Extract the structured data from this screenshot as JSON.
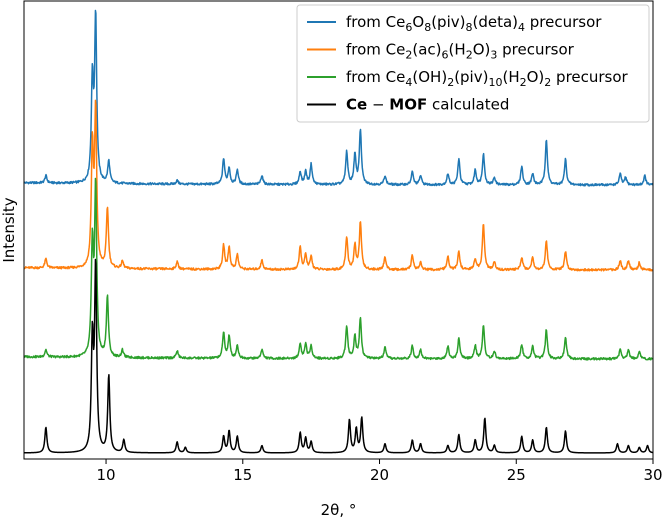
{
  "chart_data": {
    "type": "line",
    "title": "",
    "xlabel": "2θ, °",
    "ylabel": "Intensity",
    "xlim": [
      7,
      30
    ],
    "xticks": [
      10,
      15,
      20,
      25,
      30
    ],
    "yticks_shown": false,
    "grid": false,
    "legend_position": "top-right",
    "series": [
      {
        "legend": {
          "pre": "from Ce",
          "s1": "6",
          "m1": "O",
          "s2": "8",
          "m2": "(piv)",
          "s3": "8",
          "m3": "(deta)",
          "s4": "4",
          "post": " precursor"
        },
        "color": "#1f77b4",
        "offset": 3,
        "peaks": [
          [
            7.8,
            0.04
          ],
          [
            9.5,
            0.55
          ],
          [
            9.62,
            0.9
          ],
          [
            10.1,
            0.12
          ],
          [
            12.6,
            0.02
          ],
          [
            14.3,
            0.14
          ],
          [
            14.5,
            0.09
          ],
          [
            14.8,
            0.08
          ],
          [
            15.7,
            0.05
          ],
          [
            17.1,
            0.07
          ],
          [
            17.3,
            0.07
          ],
          [
            17.5,
            0.11
          ],
          [
            18.8,
            0.18
          ],
          [
            19.1,
            0.16
          ],
          [
            19.3,
            0.3
          ],
          [
            20.2,
            0.05
          ],
          [
            21.2,
            0.07
          ],
          [
            21.5,
            0.05
          ],
          [
            22.5,
            0.06
          ],
          [
            22.9,
            0.14
          ],
          [
            23.5,
            0.08
          ],
          [
            23.8,
            0.17
          ],
          [
            24.2,
            0.04
          ],
          [
            25.2,
            0.1
          ],
          [
            25.6,
            0.06
          ],
          [
            26.1,
            0.25
          ],
          [
            26.8,
            0.14
          ],
          [
            28.8,
            0.06
          ],
          [
            29.0,
            0.04
          ],
          [
            29.7,
            0.05
          ]
        ]
      },
      {
        "legend": {
          "pre": "from Ce",
          "s1": "2",
          "m1": "(ac)",
          "s2": "6",
          "m2": "(H",
          "s3": "2",
          "m3": "O)",
          "s4": "3",
          "post": " precursor"
        },
        "color": "#ff7f0e",
        "offset": 2,
        "peaks": [
          [
            7.8,
            0.05
          ],
          [
            9.5,
            0.65
          ],
          [
            9.62,
            0.85
          ],
          [
            10.05,
            0.33
          ],
          [
            10.6,
            0.04
          ],
          [
            12.6,
            0.04
          ],
          [
            14.3,
            0.13
          ],
          [
            14.5,
            0.12
          ],
          [
            14.8,
            0.08
          ],
          [
            15.7,
            0.05
          ],
          [
            17.1,
            0.12
          ],
          [
            17.3,
            0.08
          ],
          [
            17.5,
            0.07
          ],
          [
            18.8,
            0.18
          ],
          [
            19.1,
            0.13
          ],
          [
            19.3,
            0.26
          ],
          [
            20.2,
            0.07
          ],
          [
            21.2,
            0.08
          ],
          [
            21.5,
            0.04
          ],
          [
            22.5,
            0.07
          ],
          [
            22.9,
            0.1
          ],
          [
            23.5,
            0.06
          ],
          [
            23.8,
            0.25
          ],
          [
            24.2,
            0.04
          ],
          [
            25.2,
            0.07
          ],
          [
            25.6,
            0.07
          ],
          [
            26.1,
            0.16
          ],
          [
            26.8,
            0.1
          ],
          [
            28.8,
            0.05
          ],
          [
            29.1,
            0.05
          ],
          [
            29.5,
            0.04
          ]
        ]
      },
      {
        "legend": {
          "pre": "from Ce",
          "s1": "4",
          "m1": "(OH)",
          "s2": "2",
          "m2": "(piv)",
          "s3": "10",
          "m3": "(H",
          "s4": "2",
          "post": "O)",
          "s5": "2",
          "post2": " precursor"
        },
        "color": "#2ca02c",
        "offset": 1,
        "peaks": [
          [
            7.8,
            0.04
          ],
          [
            9.5,
            0.6
          ],
          [
            9.62,
            0.92
          ],
          [
            10.05,
            0.33
          ],
          [
            10.6,
            0.04
          ],
          [
            12.6,
            0.04
          ],
          [
            14.3,
            0.14
          ],
          [
            14.5,
            0.12
          ],
          [
            14.8,
            0.07
          ],
          [
            15.7,
            0.05
          ],
          [
            17.1,
            0.08
          ],
          [
            17.3,
            0.08
          ],
          [
            17.5,
            0.07
          ],
          [
            18.8,
            0.18
          ],
          [
            19.1,
            0.12
          ],
          [
            19.3,
            0.22
          ],
          [
            20.2,
            0.06
          ],
          [
            21.2,
            0.07
          ],
          [
            21.5,
            0.05
          ],
          [
            22.5,
            0.07
          ],
          [
            22.9,
            0.11
          ],
          [
            23.5,
            0.07
          ],
          [
            23.8,
            0.18
          ],
          [
            24.2,
            0.04
          ],
          [
            25.2,
            0.08
          ],
          [
            25.6,
            0.07
          ],
          [
            26.1,
            0.16
          ],
          [
            26.8,
            0.12
          ],
          [
            28.8,
            0.05
          ],
          [
            29.1,
            0.05
          ],
          [
            29.5,
            0.04
          ]
        ]
      },
      {
        "legend": {
          "pre": "",
          "bold1": "Ce",
          "sep": " − ",
          "bold2": "MOF",
          "post": " calculated"
        },
        "color": "#000000",
        "offset": 0,
        "peaks": [
          [
            7.8,
            0.14
          ],
          [
            9.5,
            0.6
          ],
          [
            9.62,
            1.0
          ],
          [
            10.1,
            0.42
          ],
          [
            10.65,
            0.07
          ],
          [
            12.6,
            0.06
          ],
          [
            12.9,
            0.03
          ],
          [
            14.3,
            0.09
          ],
          [
            14.5,
            0.12
          ],
          [
            14.8,
            0.09
          ],
          [
            15.7,
            0.04
          ],
          [
            17.1,
            0.11
          ],
          [
            17.3,
            0.08
          ],
          [
            17.5,
            0.06
          ],
          [
            18.9,
            0.18
          ],
          [
            19.15,
            0.13
          ],
          [
            19.35,
            0.19
          ],
          [
            20.2,
            0.05
          ],
          [
            21.2,
            0.07
          ],
          [
            21.5,
            0.05
          ],
          [
            22.5,
            0.04
          ],
          [
            22.9,
            0.1
          ],
          [
            23.5,
            0.07
          ],
          [
            23.85,
            0.19
          ],
          [
            24.2,
            0.04
          ],
          [
            25.2,
            0.09
          ],
          [
            25.6,
            0.07
          ],
          [
            26.1,
            0.14
          ],
          [
            26.8,
            0.12
          ],
          [
            28.7,
            0.05
          ],
          [
            29.1,
            0.04
          ],
          [
            29.5,
            0.03
          ],
          [
            29.8,
            0.04
          ]
        ]
      }
    ]
  }
}
